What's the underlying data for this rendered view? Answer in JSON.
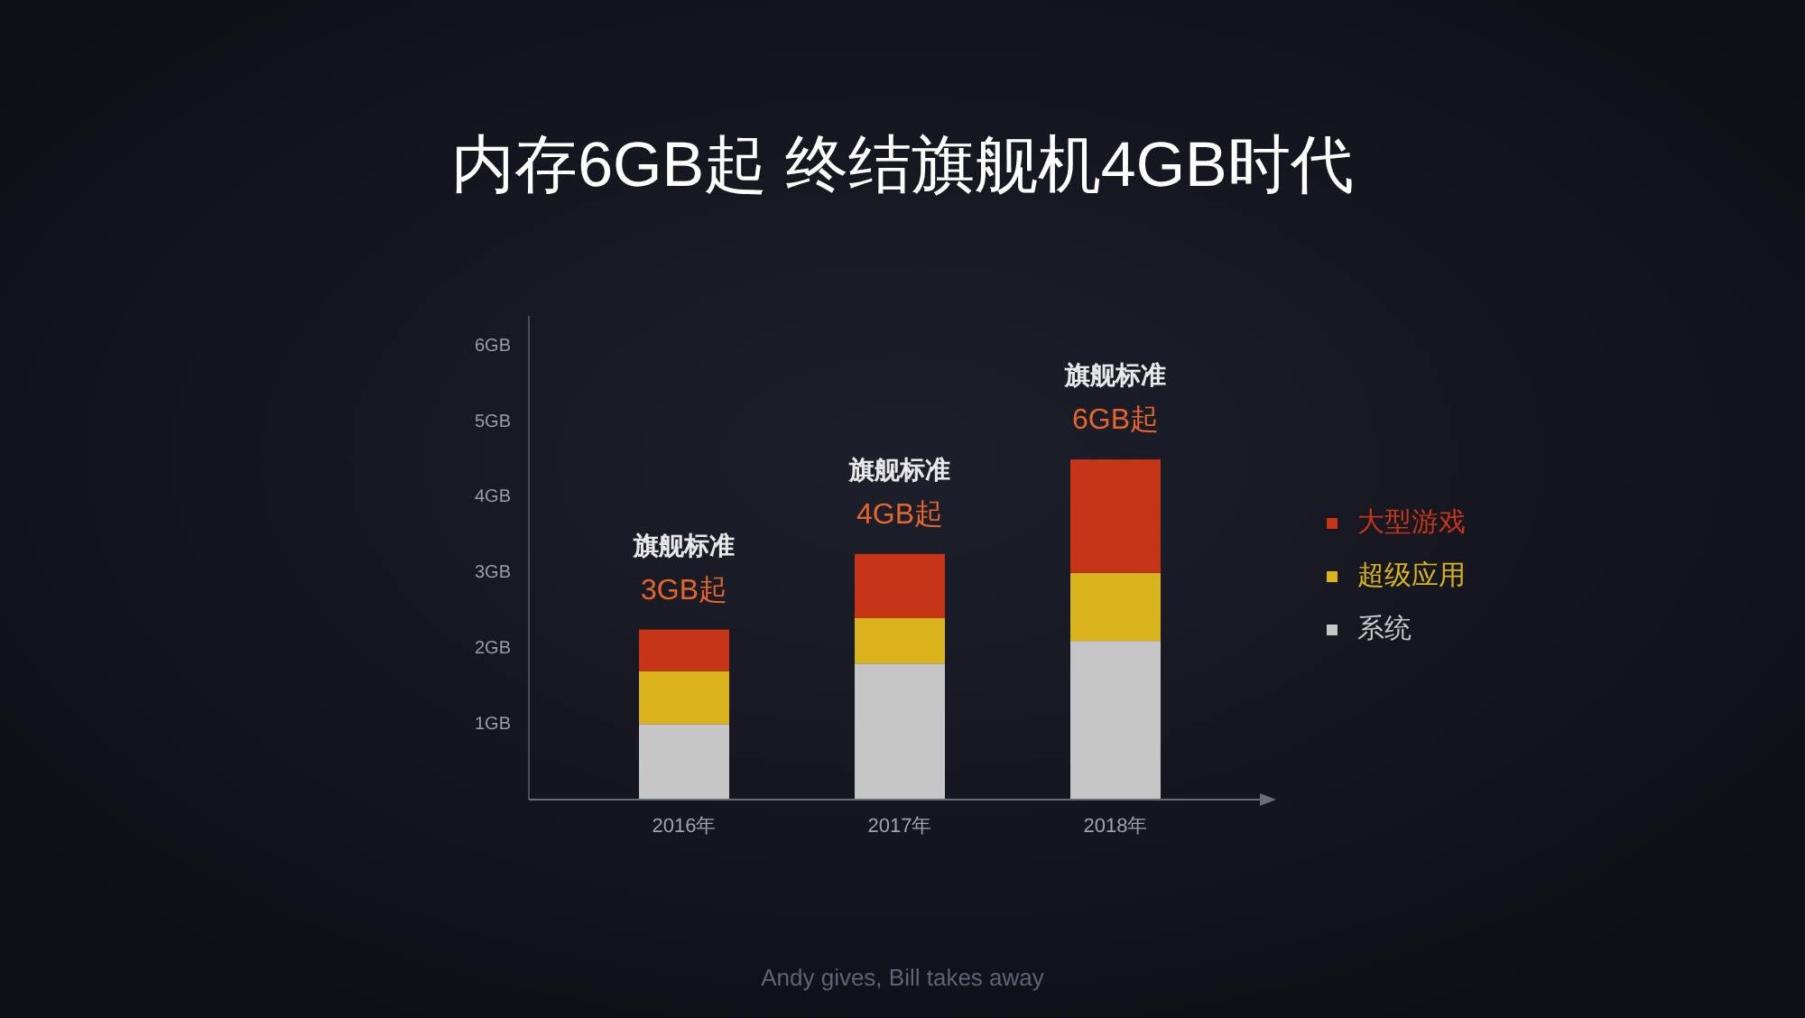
{
  "chart_data": {
    "type": "bar",
    "title": "内存6GB起 终结旗舰机4GB时代",
    "categories": [
      "2016年",
      "2017年",
      "2018年"
    ],
    "series": [
      {
        "name": "系统",
        "color": "#c6c6c6",
        "values": [
          1.0,
          1.8,
          2.1
        ]
      },
      {
        "name": "超级应用",
        "color": "#d9b31c",
        "values": [
          0.7,
          0.6,
          0.9
        ]
      },
      {
        "name": "大型游戏",
        "color": "#c73519",
        "values": [
          0.55,
          0.85,
          1.5
        ]
      }
    ],
    "stacked": true,
    "ylim": [
      0,
      6.4
    ],
    "yticks": [
      {
        "value": 1,
        "label": "1GB"
      },
      {
        "value": 2,
        "label": "2GB"
      },
      {
        "value": 3,
        "label": "3GB"
      },
      {
        "value": 4,
        "label": "4GB"
      },
      {
        "value": 5,
        "label": "5GB"
      },
      {
        "value": 6,
        "label": "6GB"
      }
    ],
    "legend": "right",
    "annotations": [
      "旗舰标准",
      "3GB起",
      "旗舰标准",
      "4GB起",
      "旗舰标准",
      "6GB起",
      "Andy gives, Bill takes away"
    ]
  }
}
